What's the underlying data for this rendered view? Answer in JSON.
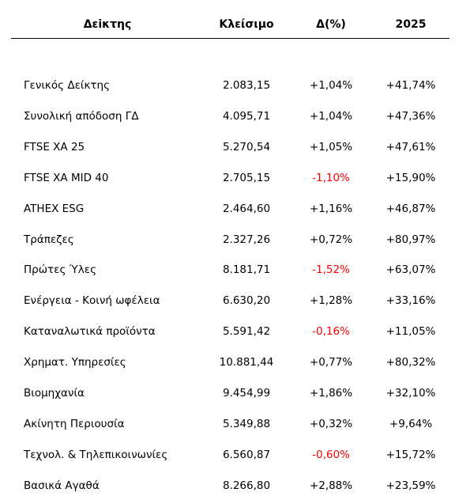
{
  "table": {
    "headers": {
      "name": "Δεiκτης",
      "close": "Κλείσιμο",
      "change": "Δ(%)",
      "ytd": "2025"
    },
    "negative_color": "#ff0000",
    "rows": [
      {
        "name": "Γενικός Δείκτης",
        "close": "2.083,15",
        "change": "+1,04%",
        "ytd": "+41,74%"
      },
      {
        "name": "Συνολική απόδοση ΓΔ",
        "close": "4.095,71",
        "change": "+1,04%",
        "ytd": "+47,36%"
      },
      {
        "name": "FTSE XA 25",
        "close": "5.270,54",
        "change": "+1,05%",
        "ytd": "+47,61%"
      },
      {
        "name": "FTSE XA MID 40",
        "close": "2.705,15",
        "change": "-1,10%",
        "ytd": "+15,90%"
      },
      {
        "name": "ATHEX ESG",
        "close": "2.464,60",
        "change": "+1,16%",
        "ytd": "+46,87%"
      },
      {
        "name": "Τράπεζες",
        "close": "2.327,26",
        "change": "+0,72%",
        "ytd": "+80,97%"
      },
      {
        "name": "Πρώτες Ύλες",
        "close": "8.181,71",
        "change": "-1,52%",
        "ytd": "+63,07%"
      },
      {
        "name": "Ενέργεια - Κοινή ωφέλεια",
        "close": "6.630,20",
        "change": "+1,28%",
        "ytd": "+33,16%"
      },
      {
        "name": "Καταναλωτικά προϊόντα",
        "close": "5.591,42",
        "change": "-0,16%",
        "ytd": "+11,05%"
      },
      {
        "name": "Χρηματ. Υπηρεσίες",
        "close": "10.881,44",
        "change": "+0,77%",
        "ytd": "+80,32%"
      },
      {
        "name": "Βιομηχανία",
        "close": "9.454,99",
        "change": "+1,86%",
        "ytd": "+32,10%"
      },
      {
        "name": "Ακίνητη Περιουσία",
        "close": "5.349,88",
        "change": "+0,32%",
        "ytd": "+9,64%"
      },
      {
        "name": "Τεχνολ. & Τηλεπικοινωνίες",
        "close": "6.560,87",
        "change": "-0,60%",
        "ytd": "+15,72%"
      },
      {
        "name": "Βασικά Αγαθά",
        "close": "8.266,80",
        "change": "+2,88%",
        "ytd": "+23,59%"
      }
    ]
  }
}
